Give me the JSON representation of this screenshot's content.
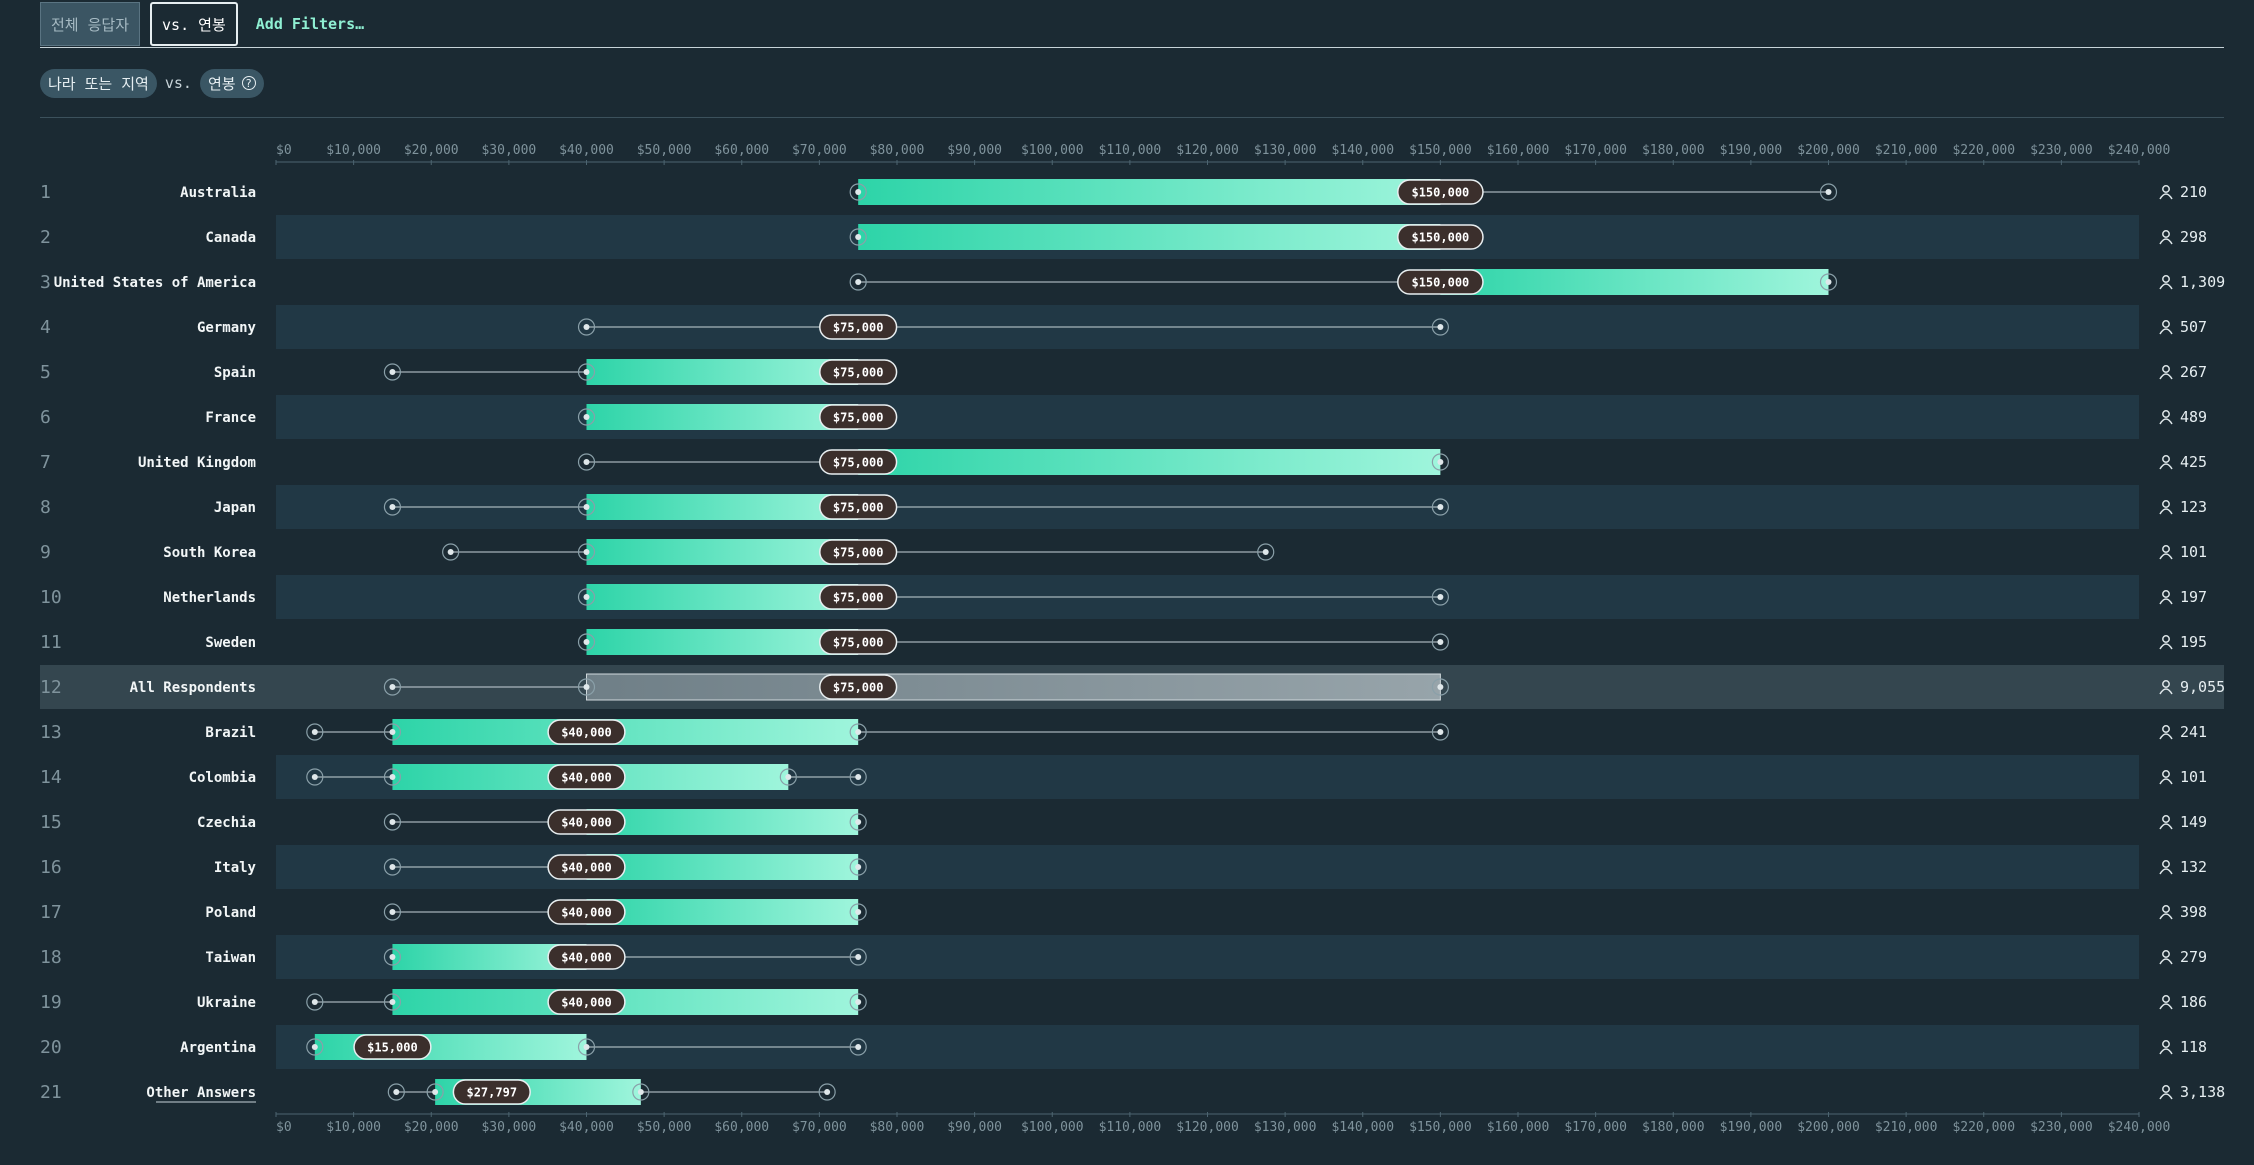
{
  "tabs": {
    "all_label": "전체 응답자",
    "vs_label": "vs. 연봉",
    "filters_label": "Add Filters…"
  },
  "subheader": {
    "field1": "나라 또는 지역",
    "vs": "vs.",
    "field2": "연봉",
    "help_icon": "question-circle-icon"
  },
  "colors": {
    "background": "#1b2a33",
    "band": "#213845",
    "bar_start": "#2dd4a8",
    "bar_end": "#9ff5dc",
    "highlight_row": "#34464f",
    "label_bg": "#3b2f2c"
  },
  "chart_data": {
    "type": "box",
    "title": "",
    "xlabel": "",
    "ylabel": "",
    "xlim": [
      0,
      240000
    ],
    "x_ticks": [
      "$0",
      "$10,000",
      "$20,000",
      "$30,000",
      "$40,000",
      "$50,000",
      "$60,000",
      "$70,000",
      "$80,000",
      "$90,000",
      "$100,000",
      "$110,000",
      "$120,000",
      "$130,000",
      "$140,000",
      "$150,000",
      "$160,000",
      "$170,000",
      "$180,000",
      "$190,000",
      "$200,000",
      "$210,000",
      "$220,000",
      "$230,000",
      "$240,000"
    ],
    "rows": [
      {
        "rank": "1",
        "name": "Australia",
        "whisker_low": 75000,
        "q1": 75000,
        "median": 150000,
        "q3": 150000,
        "whisker_high": 200000,
        "median_label": "$150,000",
        "count": "210"
      },
      {
        "rank": "2",
        "name": "Canada",
        "whisker_low": 75000,
        "q1": 75000,
        "median": 150000,
        "q3": 150000,
        "whisker_high": 150000,
        "median_label": "$150,000",
        "count": "298"
      },
      {
        "rank": "3",
        "name": "United States of America",
        "whisker_low": 75000,
        "q1": 150000,
        "median": 150000,
        "q3": 200000,
        "whisker_high": 200000,
        "median_label": "$150,000",
        "count": "1,309"
      },
      {
        "rank": "4",
        "name": "Germany",
        "whisker_low": 40000,
        "q1": 75000,
        "median": 75000,
        "q3": 75000,
        "whisker_high": 150000,
        "median_label": "$75,000",
        "count": "507"
      },
      {
        "rank": "5",
        "name": "Spain",
        "whisker_low": 15000,
        "q1": 40000,
        "median": 75000,
        "q3": 75000,
        "whisker_high": 75000,
        "median_label": "$75,000",
        "count": "267"
      },
      {
        "rank": "6",
        "name": "France",
        "whisker_low": 40000,
        "q1": 40000,
        "median": 75000,
        "q3": 75000,
        "whisker_high": 75000,
        "median_label": "$75,000",
        "count": "489"
      },
      {
        "rank": "7",
        "name": "United Kingdom",
        "whisker_low": 40000,
        "q1": 75000,
        "median": 75000,
        "q3": 150000,
        "whisker_high": 150000,
        "median_label": "$75,000",
        "count": "425"
      },
      {
        "rank": "8",
        "name": "Japan",
        "whisker_low": 15000,
        "q1": 40000,
        "median": 75000,
        "q3": 75000,
        "whisker_high": 150000,
        "median_label": "$75,000",
        "count": "123"
      },
      {
        "rank": "9",
        "name": "South Korea",
        "whisker_low": 22500,
        "q1": 40000,
        "median": 75000,
        "q3": 75000,
        "whisker_high": 127500,
        "median_label": "$75,000",
        "count": "101"
      },
      {
        "rank": "10",
        "name": "Netherlands",
        "whisker_low": 40000,
        "q1": 40000,
        "median": 75000,
        "q3": 75000,
        "whisker_high": 150000,
        "median_label": "$75,000",
        "count": "197"
      },
      {
        "rank": "11",
        "name": "Sweden",
        "whisker_low": 40000,
        "q1": 40000,
        "median": 75000,
        "q3": 75000,
        "whisker_high": 150000,
        "median_label": "$75,000",
        "count": "195"
      },
      {
        "rank": "12",
        "name": "All Respondents",
        "whisker_low": 15000,
        "q1": 40000,
        "median": 75000,
        "q3": 150000,
        "whisker_high": 150000,
        "median_label": "$75,000",
        "count": "9,055",
        "highlight": true
      },
      {
        "rank": "13",
        "name": "Brazil",
        "whisker_low": 5000,
        "q1": 15000,
        "median": 40000,
        "q3": 75000,
        "whisker_high": 150000,
        "median_label": "$40,000",
        "count": "241"
      },
      {
        "rank": "14",
        "name": "Colombia",
        "whisker_low": 5000,
        "q1": 15000,
        "median": 40000,
        "q3": 66000,
        "whisker_high": 75000,
        "median_label": "$40,000",
        "count": "101"
      },
      {
        "rank": "15",
        "name": "Czechia",
        "whisker_low": 15000,
        "q1": 40000,
        "median": 40000,
        "q3": 75000,
        "whisker_high": 75000,
        "median_label": "$40,000",
        "count": "149"
      },
      {
        "rank": "16",
        "name": "Italy",
        "whisker_low": 15000,
        "q1": 40000,
        "median": 40000,
        "q3": 75000,
        "whisker_high": 75000,
        "median_label": "$40,000",
        "count": "132"
      },
      {
        "rank": "17",
        "name": "Poland",
        "whisker_low": 15000,
        "q1": 40000,
        "median": 40000,
        "q3": 75000,
        "whisker_high": 75000,
        "median_label": "$40,000",
        "count": "398"
      },
      {
        "rank": "18",
        "name": "Taiwan",
        "whisker_low": 15000,
        "q1": 15000,
        "median": 40000,
        "q3": 40000,
        "whisker_high": 75000,
        "median_label": "$40,000",
        "count": "279"
      },
      {
        "rank": "19",
        "name": "Ukraine",
        "whisker_low": 5000,
        "q1": 15000,
        "median": 40000,
        "q3": 75000,
        "whisker_high": 75000,
        "median_label": "$40,000",
        "count": "186"
      },
      {
        "rank": "20",
        "name": "Argentina",
        "whisker_low": 5000,
        "q1": 5000,
        "median": 15000,
        "q3": 40000,
        "whisker_high": 75000,
        "median_label": "$15,000",
        "count": "118"
      },
      {
        "rank": "21",
        "name": "Other Answers",
        "whisker_low": 15500,
        "q1": 20500,
        "median": 27797,
        "q3": 47000,
        "whisker_high": 71000,
        "median_label": "$27,797",
        "count": "3,138",
        "underline": true
      }
    ]
  }
}
